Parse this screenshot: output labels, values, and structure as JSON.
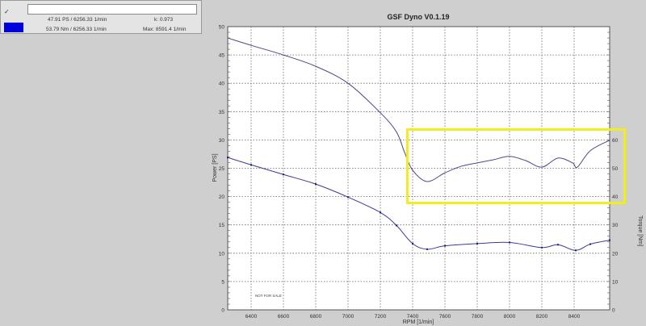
{
  "legend": {
    "checkbox_label": "✓",
    "name_field_value": "",
    "swatch_color": "#0000dd",
    "power_reading": "47.91 PS / 6256.33 1/min",
    "torque_reading": "53.79 Nm / 6256.33 1/min",
    "k_value": "k: 0.973",
    "max_value": "Max: 8591.4 1/min"
  },
  "annotation": {
    "watermark": "NOT FOR SALE",
    "highlight_color": "#f2ee1a"
  },
  "chart_data": {
    "type": "line",
    "title": "GSF Dyno V0.1.19",
    "xlabel": "RPM [1/min]",
    "ylabel": "Power [PS]",
    "y2label": "Torque [Nm]",
    "xlim": [
      6255,
      8620
    ],
    "ylim": [
      0,
      50
    ],
    "y2lim": [
      0,
      100
    ],
    "x_ticks": [
      6400,
      6600,
      6800,
      7000,
      7200,
      7400,
      7600,
      7800,
      8000,
      8200,
      8400
    ],
    "y_ticks": [
      0,
      5,
      10,
      15,
      20,
      25,
      30,
      35,
      40,
      45,
      50
    ],
    "y2_ticks": [
      0,
      10,
      20,
      30,
      40,
      50,
      60
    ],
    "grid": true,
    "legend_position": "none",
    "series": [
      {
        "name": "Torque [Nm]",
        "axis": "right",
        "color": "#4a4a8a",
        "x": [
          6255,
          6400,
          6600,
          6800,
          7000,
          7200,
          7300,
          7350,
          7400,
          7490,
          7600,
          7700,
          7800,
          7900,
          8000,
          8100,
          8200,
          8300,
          8390,
          8420,
          8500,
          8620
        ],
        "values": [
          96,
          93.4,
          90,
          86,
          80,
          69.6,
          62.8,
          55.6,
          49.3,
          45.3,
          48.4,
          50.7,
          51.9,
          53,
          54.2,
          52.7,
          50.4,
          53.6,
          51.9,
          50.4,
          56.2,
          59.9
        ]
      },
      {
        "name": "Power [PS]",
        "axis": "left",
        "color": "#3a3a9a",
        "markers": true,
        "x": [
          6255,
          6400,
          6600,
          6800,
          7000,
          7200,
          7300,
          7400,
          7490,
          7600,
          7800,
          8000,
          8200,
          8300,
          8410,
          8500,
          8620
        ],
        "values": [
          26.9,
          25.6,
          23.9,
          22.2,
          19.9,
          17.2,
          14.9,
          11.7,
          10.7,
          11.3,
          11.7,
          11.9,
          11.0,
          11.5,
          10.5,
          11.6,
          12.3
        ]
      }
    ]
  }
}
